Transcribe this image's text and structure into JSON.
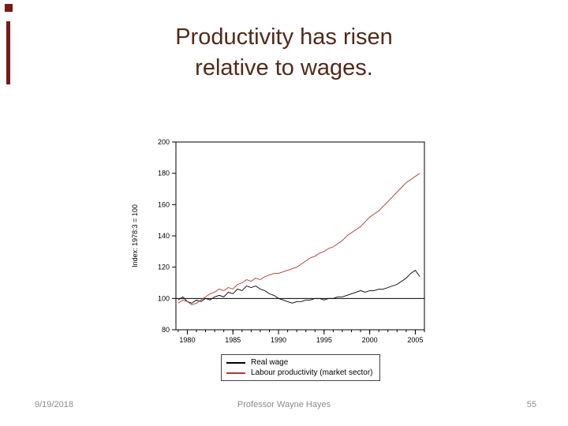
{
  "slide": {
    "title": "Productivity has risen relative to wages.",
    "footer": {
      "date": "9/19/2018",
      "author": "Professor Wayne Hayes",
      "page_number": "55"
    }
  },
  "colors": {
    "title_text": "#512a1a",
    "accent": "#7b1818",
    "footer_text": "#8c8c8c"
  },
  "chart_data": {
    "type": "line",
    "title": "",
    "xlabel": "",
    "ylabel": "Index: 1978:3 = 100",
    "xlim": [
      1978.75,
      2006
    ],
    "ylim": [
      80,
      200
    ],
    "yticks": [
      80,
      100,
      120,
      140,
      160,
      180,
      200
    ],
    "xticks": [
      1980,
      1985,
      1990,
      1995,
      2000,
      2005
    ],
    "reference_line": 100,
    "legend_position": "below",
    "grid": false,
    "x": [
      1979,
      1979.5,
      1980,
      1980.5,
      1981,
      1981.5,
      1982,
      1982.5,
      1983,
      1983.5,
      1984,
      1984.5,
      1985,
      1985.5,
      1986,
      1986.5,
      1987,
      1987.5,
      1988,
      1988.5,
      1989,
      1989.5,
      1990,
      1990.5,
      1991,
      1991.5,
      1992,
      1992.5,
      1993,
      1993.5,
      1994,
      1994.5,
      1995,
      1995.5,
      1996,
      1996.5,
      1997,
      1997.5,
      1998,
      1998.5,
      1999,
      1999.5,
      2000,
      2000.5,
      2001,
      2001.5,
      2002,
      2002.5,
      2003,
      2003.5,
      2004,
      2004.5,
      2005,
      2005.5
    ],
    "series": [
      {
        "name": "Real wage",
        "color": "#000000",
        "values": [
          99,
          101,
          98,
          97,
          99,
          98,
          100,
          99,
          101,
          102,
          101,
          104,
          103,
          106,
          105,
          108,
          107,
          108,
          106,
          105,
          103,
          102,
          100,
          99,
          98,
          97,
          98,
          98,
          99,
          99,
          100,
          100,
          99,
          100,
          100,
          101,
          101,
          102,
          103,
          104,
          105,
          104,
          105,
          105,
          106,
          106,
          107,
          108,
          109,
          111,
          113,
          116,
          118,
          114
        ]
      },
      {
        "name": "Labour productivity (market sector)",
        "color": "#b03a2e",
        "values": [
          97,
          99,
          98,
          96,
          97,
          99,
          101,
          103,
          104,
          106,
          105,
          107,
          106,
          109,
          110,
          112,
          111,
          113,
          112,
          114,
          115,
          116,
          116,
          117,
          118,
          119,
          120,
          122,
          124,
          126,
          127,
          129,
          130,
          132,
          133,
          135,
          137,
          140,
          142,
          144,
          146,
          149,
          152,
          154,
          156,
          159,
          162,
          165,
          168,
          171,
          174,
          176,
          178,
          180
        ]
      }
    ]
  }
}
